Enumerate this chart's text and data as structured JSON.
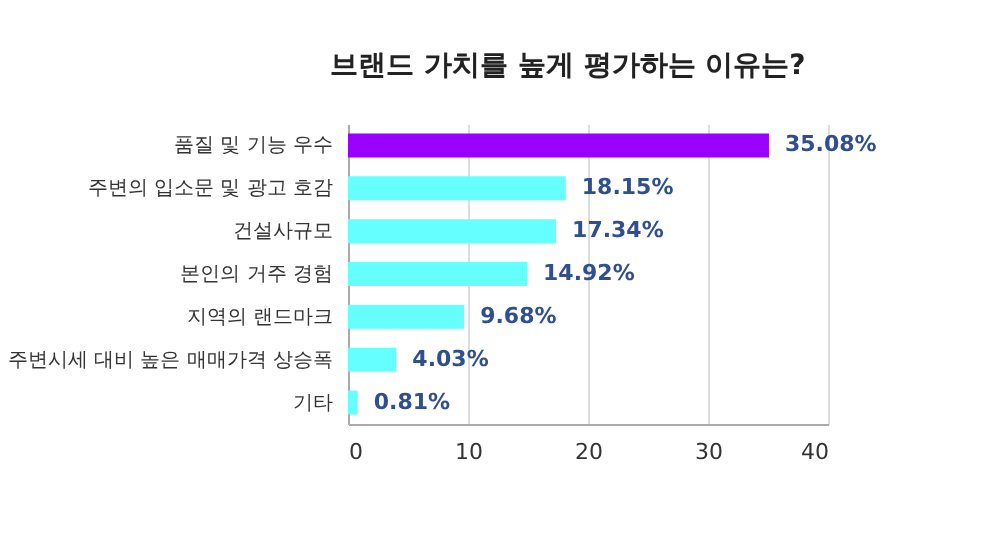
{
  "chart_data": {
    "type": "bar",
    "orientation": "horizontal",
    "title": "브랜드 가치를 높게 평가하는 이유는?",
    "categories": [
      "품질 및 기능 우수",
      "주변의 입소문 및 광고 호감",
      "건설사규모",
      "본인의 거주 경험",
      "지역의 랜드마크",
      "주변시세 대비 높은 매매가격 상승폭",
      "기타"
    ],
    "values": [
      35.08,
      18.15,
      17.34,
      14.92,
      9.68,
      4.03,
      0.81
    ],
    "value_labels": [
      "35.08%",
      "18.15%",
      "17.34%",
      "14.92%",
      "9.68%",
      "4.03%",
      "0.81%"
    ],
    "colors": [
      "#9900ff",
      "#66ffff",
      "#66ffff",
      "#66ffff",
      "#66ffff",
      "#66ffff",
      "#66ffff"
    ],
    "xlim": [
      0,
      40
    ],
    "xticks": [
      0,
      10,
      20,
      30,
      40
    ],
    "grid": "x"
  }
}
